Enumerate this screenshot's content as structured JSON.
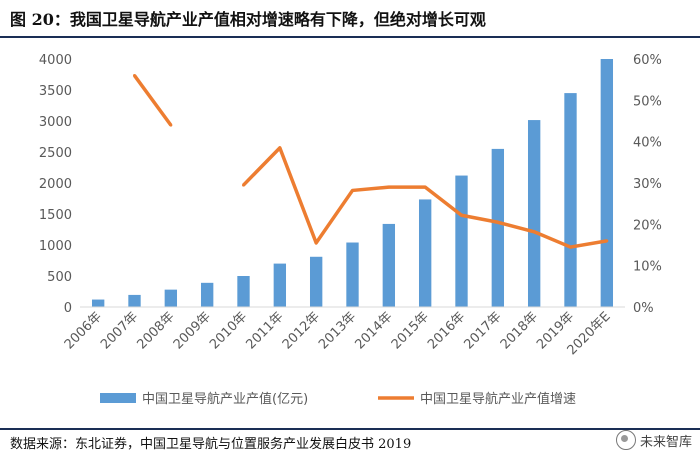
{
  "figure": {
    "title": "图 20：我国卫星导航产业产值相对增速略有下降，但绝对增长可观",
    "source": "数据来源：东北证券，中国卫星导航与位置服务产业发展白皮书 2019",
    "watermark": "未来智库"
  },
  "chart_data": {
    "type": "bar",
    "categories": [
      "2006年",
      "2007年",
      "2008年",
      "2009年",
      "2010年",
      "2011年",
      "2012年",
      "2013年",
      "2014年",
      "2015年",
      "2016年",
      "2017年",
      "2018年",
      "2019年",
      "2020年E"
    ],
    "series": [
      {
        "name": "中国卫星导航产业产值(亿元)",
        "type": "bar",
        "axis": "left",
        "values": [
          120,
          195,
          280,
          390,
          500,
          700,
          810,
          1040,
          1340,
          1735,
          2120,
          2550,
          3015,
          3450,
          4000
        ]
      },
      {
        "name": "中国卫星导航产业产值增速",
        "type": "line",
        "axis": "right",
        "values": [
          null,
          0.56,
          0.44,
          null,
          0.295,
          0.385,
          0.155,
          0.282,
          0.29,
          0.29,
          0.222,
          0.205,
          0.182,
          0.145,
          0.16
        ]
      }
    ],
    "y_left": {
      "min": 0,
      "max": 4000,
      "ticks": [
        "0",
        "500",
        "1000",
        "1500",
        "2000",
        "2500",
        "3000",
        "3500",
        "4000"
      ]
    },
    "y_right": {
      "min": 0,
      "max": 0.6,
      "ticks": [
        "0%",
        "10%",
        "20%",
        "30%",
        "40%",
        "50%",
        "60%"
      ]
    },
    "colors": {
      "bar": "#5b9bd5",
      "line": "#ed7d31",
      "axis": "#d9d9d9",
      "text": "#595959"
    },
    "legend_position": "bottom",
    "grid": false
  }
}
